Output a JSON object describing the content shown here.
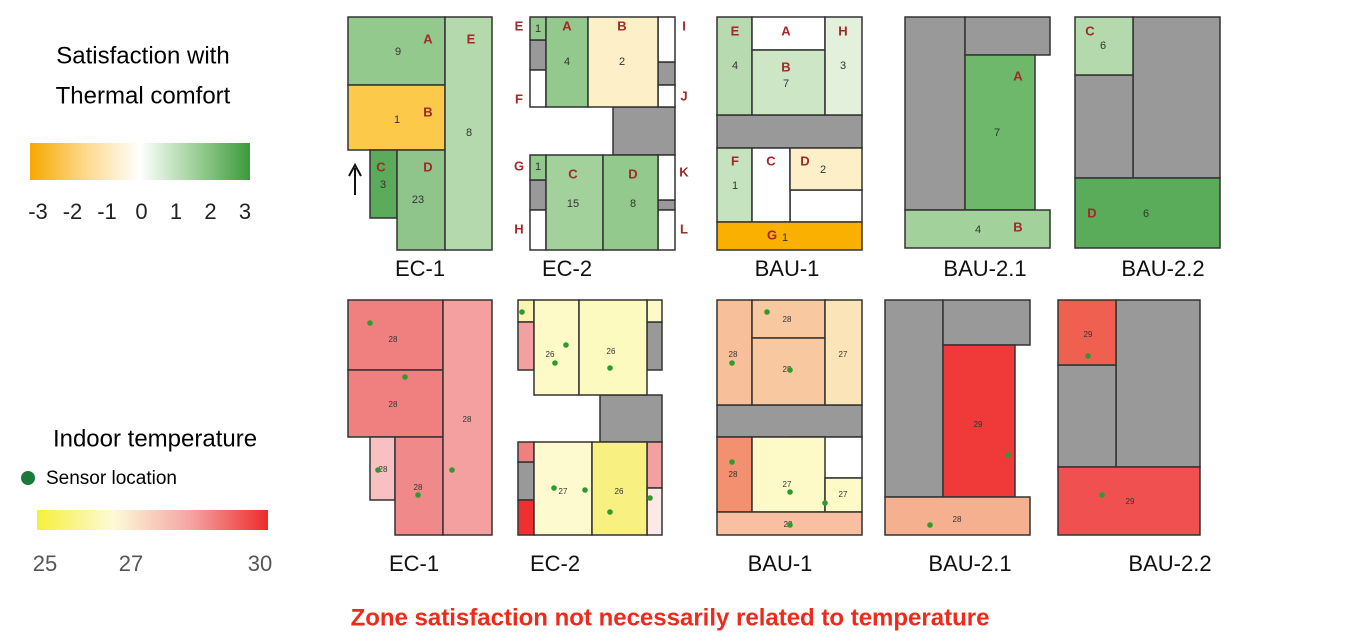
{
  "legend_satisfaction": {
    "title": [
      "Satisfaction with",
      "Thermal comfort"
    ],
    "ticks": [
      -3,
      -2,
      -1,
      0,
      1,
      2,
      3
    ],
    "colors": [
      "#f7a800",
      "#fdd98a",
      "#ffffff",
      "#9fd09a",
      "#3c9a3c"
    ]
  },
  "legend_temperature": {
    "title": "Indoor temperature",
    "sensor": "Sensor location",
    "ticks": [
      25,
      27,
      30
    ],
    "colors": [
      "#f7f03a",
      "#fdfad8",
      "#f4a4a4",
      "#ee2a2a"
    ]
  },
  "satisfaction_plans": [
    {
      "label": "EC-1",
      "zones": [
        {
          "letter": "A",
          "count": 9,
          "color": "#93c98c"
        },
        {
          "letter": "B",
          "count": 1,
          "color": "#fdc94a"
        },
        {
          "letter": "C",
          "count": 3,
          "color": "#5aac5a"
        },
        {
          "letter": "D",
          "count": 23,
          "color": "#8fc58a"
        },
        {
          "letter": "E",
          "count": 8,
          "color": "#b4d9ad"
        }
      ]
    },
    {
      "label": "EC-2",
      "zones": [
        {
          "letter": "E",
          "count": 1,
          "color": "#93c98c"
        },
        {
          "letter": "F",
          "color": "#ffffff"
        },
        {
          "letter": "G",
          "count": 1,
          "color": "#93c98c"
        },
        {
          "letter": "H",
          "color": "#ffffff"
        },
        {
          "letter": "I",
          "color": "#ffffff"
        },
        {
          "letter": "J",
          "color": "#ffffff"
        },
        {
          "letter": "K",
          "color": "#ffffff"
        },
        {
          "letter": "L",
          "color": "#ffffff"
        },
        {
          "letter": "A",
          "count": 4,
          "color": "#93c98c"
        },
        {
          "letter": "B",
          "count": 2,
          "color": "#fdf0c8"
        },
        {
          "letter": "C",
          "count": 15,
          "color": "#a3d19c"
        },
        {
          "letter": "D",
          "count": 8,
          "color": "#93c98c"
        }
      ]
    },
    {
      "label": "BAU-1",
      "zones": [
        {
          "letter": "E",
          "count": 4,
          "color": "#b8dab0"
        },
        {
          "letter": "A",
          "color": "#ffffff"
        },
        {
          "letter": "B",
          "count": 7,
          "color": "#cde6c6"
        },
        {
          "letter": "H",
          "count": 3,
          "color": "#e2f0dc"
        },
        {
          "letter": "F",
          "count": 1,
          "color": "#c6e3bf"
        },
        {
          "letter": "C",
          "color": "#ffffff"
        },
        {
          "letter": "D",
          "count": 2,
          "color": "#fdf0c8"
        },
        {
          "letter": "G",
          "count": 1,
          "color": "#f9b000"
        }
      ]
    },
    {
      "label": "BAU-2.1",
      "zones": [
        {
          "letter": "A",
          "count": 7,
          "color": "#6db86a"
        },
        {
          "letter": "B",
          "count": 4,
          "color": "#a3d19c"
        }
      ]
    },
    {
      "label": "BAU-2.2",
      "zones": [
        {
          "letter": "C",
          "count": 6,
          "color": "#b4d9ad"
        },
        {
          "letter": "D",
          "count": 6,
          "color": "#5aac5a"
        }
      ]
    }
  ],
  "temperature_plans": [
    {
      "label": "EC-1",
      "zones": [
        {
          "value": 28,
          "color": "#f08080"
        },
        {
          "value": 28,
          "color": "#f08080"
        },
        {
          "value": 28,
          "color": "#f8c0c0"
        },
        {
          "value": 28,
          "color": "#f08a8a"
        },
        {
          "value": 28,
          "color": "#f4a0a0"
        }
      ]
    },
    {
      "label": "EC-2",
      "zones": [
        {
          "value": 26,
          "color": "#fdfac8"
        },
        {
          "value": 26,
          "color": "#fdfac0"
        },
        {
          "value": 27,
          "color": "#fdfad0"
        },
        {
          "value": 26,
          "color": "#f8f080"
        }
      ]
    },
    {
      "label": "BAU-1",
      "zones": [
        {
          "value": 28,
          "color": "#f8c09a"
        },
        {
          "value": 28,
          "color": "#f8c8a0"
        },
        {
          "value": 28,
          "color": "#f8c8a0"
        },
        {
          "value": 27,
          "color": "#fbe4b8"
        },
        {
          "value": 28,
          "color": "#f39070"
        },
        {
          "value": 27,
          "color": "#fdfac8"
        },
        {
          "value": 27,
          "color": "#fdfac8"
        },
        {
          "value": 28,
          "color": "#f8c0a0"
        }
      ]
    },
    {
      "label": "BAU-2.1",
      "zones": [
        {
          "value": 29,
          "color": "#f03a3a"
        },
        {
          "value": 28,
          "color": "#f5b090"
        }
      ]
    },
    {
      "label": "BAU-2.2",
      "zones": [
        {
          "value": 29,
          "color": "#f06050"
        },
        {
          "value": 29,
          "color": "#f05050"
        }
      ]
    }
  ],
  "note": "Zone satisfaction not necessarily related to temperature"
}
